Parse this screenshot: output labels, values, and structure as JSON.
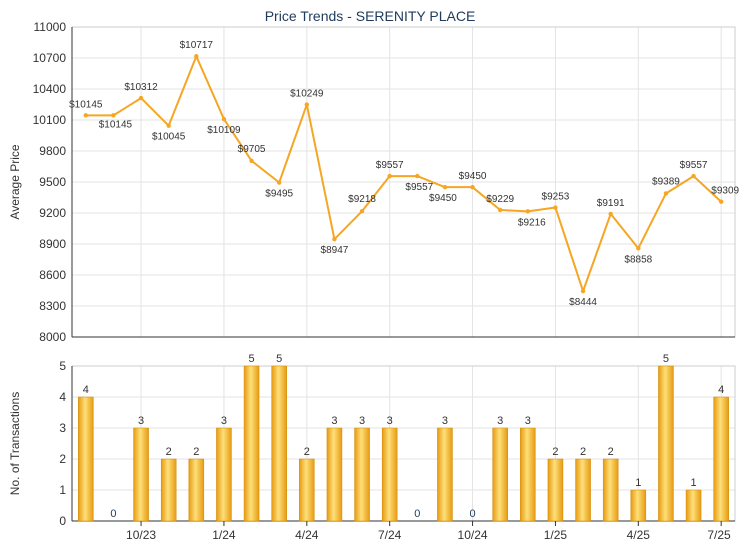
{
  "colors": {
    "line": "#f5a623",
    "bar": "#f0aa1c",
    "grid": "#e3e3e3",
    "axis": "#333333",
    "title": "#1f3a5c",
    "label": "#333333",
    "zero_label": "#1f3a5c"
  },
  "chart_data": [
    {
      "type": "line",
      "title": "Price Trends - SERENITY PLACE",
      "ylabel": "Average Price",
      "ylim": [
        8000,
        11000
      ],
      "yticks": [
        "8000",
        "8300",
        "8600",
        "8900",
        "9200",
        "9500",
        "9800",
        "10100",
        "10400",
        "10700",
        "11000"
      ],
      "grid": true,
      "series": [
        {
          "values": [
            10145,
            10145,
            10312,
            10045,
            10717,
            10109,
            9705,
            9495,
            10249,
            8947,
            9218,
            9557,
            9557,
            9450,
            9450,
            9229,
            9216,
            9253,
            8444,
            9191,
            8858,
            9389,
            9557,
            9309
          ],
          "labels": [
            "$10145",
            "$10145",
            "$10312",
            "$10045",
            "$10717",
            "$10109",
            "$9705",
            "$9495",
            "$10249",
            "$8947",
            "$9218",
            "$9557",
            "$9557",
            "$9450",
            "$9450",
            "$9229",
            "$9216",
            "$9253",
            "$8444",
            "$9191",
            "$8858",
            "$9389",
            "$9557",
            "$9309"
          ]
        }
      ]
    },
    {
      "type": "bar",
      "ylabel": "No. of Transactions",
      "ylim": [
        0,
        5
      ],
      "yticks": [
        "0",
        "1",
        "2",
        "3",
        "4",
        "5"
      ],
      "x_tick_labels": [
        "10/23",
        "1/24",
        "4/24",
        "7/24",
        "10/24",
        "1/25",
        "4/25",
        "7/25"
      ],
      "values": [
        4,
        0,
        3,
        2,
        2,
        3,
        5,
        5,
        2,
        3,
        3,
        3,
        0,
        3,
        0,
        3,
        3,
        2,
        2,
        2,
        1,
        5,
        1,
        4
      ],
      "value_labels": [
        "4",
        "0",
        "3",
        "2",
        "2",
        "3",
        "5",
        "5",
        "2",
        "3",
        "3",
        "3",
        "0",
        "3",
        "0",
        "3",
        "3",
        "2",
        "2",
        "2",
        "1",
        "5",
        "1",
        "4"
      ]
    }
  ]
}
